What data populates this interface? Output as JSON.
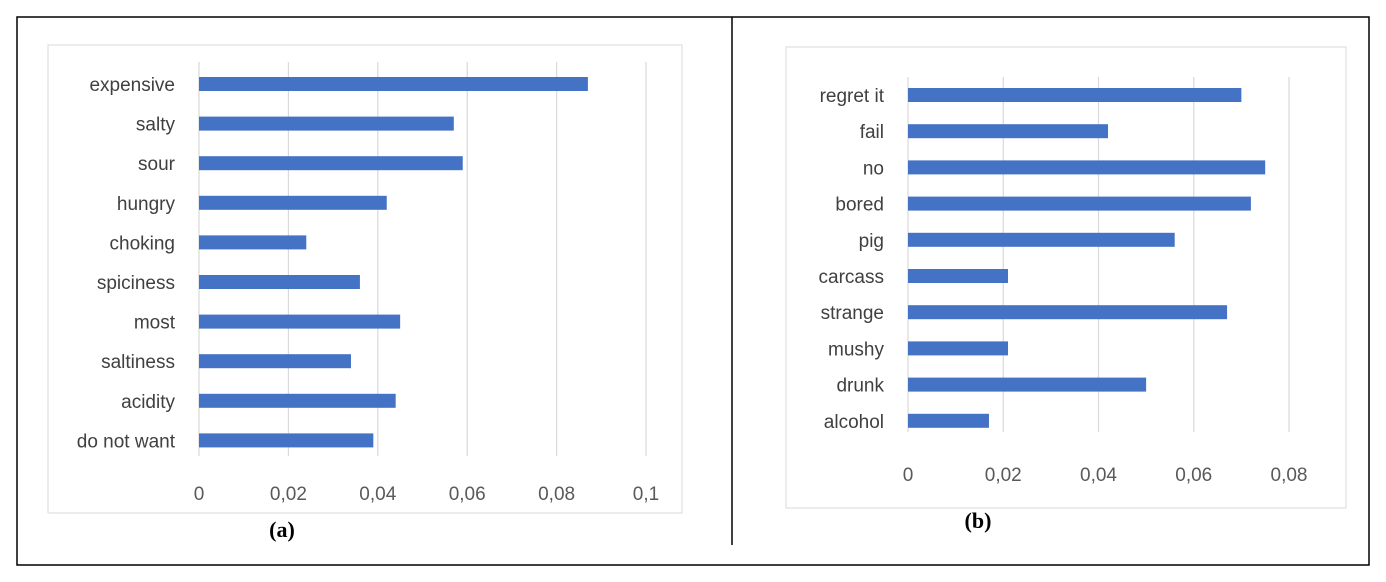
{
  "chart_data": [
    {
      "type": "bar",
      "orientation": "horizontal",
      "panel_label": "(a)",
      "categories": [
        "expensive",
        "salty",
        "sour",
        "hungry",
        "choking",
        "spiciness",
        "most",
        "saltiness",
        "acidity",
        "do not want"
      ],
      "values": [
        0.087,
        0.057,
        0.059,
        0.042,
        0.024,
        0.036,
        0.045,
        0.034,
        0.044,
        0.039
      ],
      "xlim": [
        0,
        0.1
      ],
      "xticks": [
        "0",
        "0,02",
        "0,04",
        "0,06",
        "0,08",
        "0,1"
      ],
      "grid": true,
      "bar_color": "#4472c4"
    },
    {
      "type": "bar",
      "orientation": "horizontal",
      "panel_label": "(b)",
      "categories": [
        "regret it",
        "fail",
        "no",
        "bored",
        "pig",
        "carcass",
        "strange",
        "mushy",
        "drunk",
        "alcohol"
      ],
      "values": [
        0.07,
        0.042,
        0.075,
        0.072,
        0.056,
        0.021,
        0.067,
        0.021,
        0.05,
        0.017
      ],
      "xlim": [
        0,
        0.08
      ],
      "xticks": [
        "0",
        "0,02",
        "0,04",
        "0,06",
        "0,08"
      ],
      "grid": true,
      "bar_color": "#4472c4"
    }
  ]
}
